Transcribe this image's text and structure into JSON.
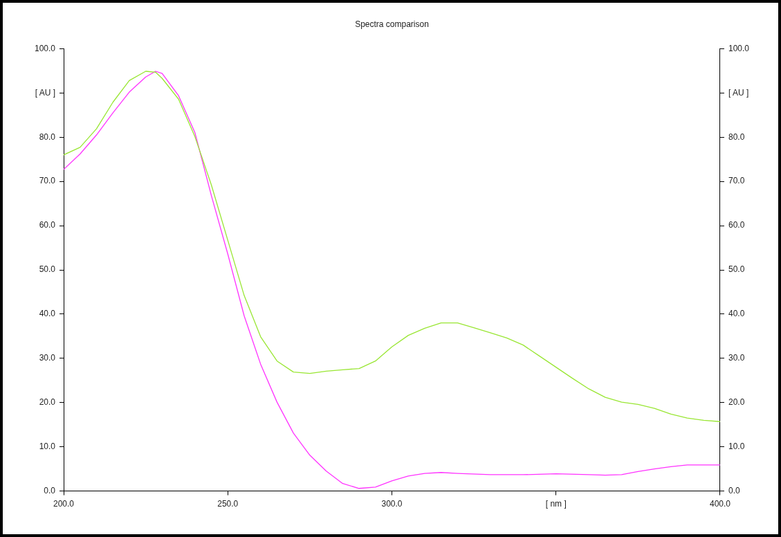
{
  "chart_data": {
    "type": "line",
    "title": "Spectra comparison",
    "xlim": [
      200,
      400
    ],
    "xticks": [
      {
        "value": 200,
        "label": "200.0"
      },
      {
        "value": 250,
        "label": "250.0"
      },
      {
        "value": 300,
        "label": "300.0"
      },
      {
        "value": 350,
        "label": "[ nm ]"
      },
      {
        "value": 400,
        "label": "400.0"
      }
    ],
    "ylim": [
      0,
      100
    ],
    "yticks": [
      {
        "value": 0,
        "label": "0.0"
      },
      {
        "value": 10,
        "label": "10.0"
      },
      {
        "value": 20,
        "label": "20.0"
      },
      {
        "value": 30,
        "label": "30.0"
      },
      {
        "value": 40,
        "label": "40.0"
      },
      {
        "value": 50,
        "label": "50.0"
      },
      {
        "value": 60,
        "label": "60.0"
      },
      {
        "value": 70,
        "label": "70.0"
      },
      {
        "value": 80,
        "label": "80.0"
      },
      {
        "value": 90,
        "label": "[ AU ]"
      },
      {
        "value": 100,
        "label": "100.0"
      }
    ],
    "y2lim": [
      0,
      100
    ],
    "y2ticks": [
      {
        "value": 0,
        "label": "0.0"
      },
      {
        "value": 10,
        "label": "10.0"
      },
      {
        "value": 20,
        "label": "20.0"
      },
      {
        "value": 30,
        "label": "30.0"
      },
      {
        "value": 40,
        "label": "40.0"
      },
      {
        "value": 50,
        "label": "50.0"
      },
      {
        "value": 60,
        "label": "60.0"
      },
      {
        "value": 70,
        "label": "70.0"
      },
      {
        "value": 80,
        "label": "80.0"
      },
      {
        "value": 90,
        "label": "[ AU ]"
      },
      {
        "value": 100,
        "label": "100.0"
      }
    ],
    "grid": false,
    "legend": false,
    "marker": "none",
    "line_style": "solid",
    "series": [
      {
        "color": "#99e633",
        "x": [
          200,
          205,
          210,
          215,
          220,
          225,
          228,
          230,
          235,
          240,
          245,
          250,
          255,
          260,
          265,
          270,
          275,
          280,
          285,
          290,
          295,
          300,
          305,
          310,
          315,
          320,
          325,
          330,
          335,
          340,
          345,
          350,
          355,
          360,
          365,
          370,
          375,
          380,
          385,
          390,
          395,
          400
        ],
        "values": [
          76.0,
          77.7,
          81.9,
          87.9,
          92.8,
          94.9,
          94.7,
          93.3,
          88.6,
          80.1,
          69.2,
          56.7,
          44.2,
          34.9,
          29.4,
          26.9,
          26.6,
          27.1,
          27.4,
          27.7,
          29.4,
          32.6,
          35.2,
          36.8,
          38.0,
          38.0,
          36.9,
          35.8,
          34.6,
          33.0,
          30.5,
          28.0,
          25.5,
          23.1,
          21.2,
          20.1,
          19.6,
          18.7,
          17.4,
          16.5,
          16.0,
          15.7
        ]
      },
      {
        "color": "#ff33ff",
        "x": [
          200,
          205,
          210,
          215,
          220,
          225,
          228,
          230,
          235,
          240,
          245,
          250,
          255,
          260,
          265,
          270,
          275,
          280,
          285,
          290,
          295,
          300,
          305,
          310,
          315,
          320,
          330,
          340,
          350,
          360,
          365,
          370,
          375,
          380,
          385,
          390,
          400
        ],
        "values": [
          72.7,
          76.2,
          80.5,
          85.5,
          90.2,
          93.6,
          94.9,
          94.4,
          89.4,
          81.0,
          66.8,
          53.6,
          39.6,
          28.7,
          20.1,
          13.1,
          8.1,
          4.5,
          1.7,
          0.6,
          0.9,
          2.3,
          3.4,
          4.0,
          4.2,
          4.0,
          3.7,
          3.7,
          3.9,
          3.7,
          3.6,
          3.7,
          4.4,
          5.0,
          5.5,
          5.9,
          5.9
        ]
      }
    ]
  }
}
